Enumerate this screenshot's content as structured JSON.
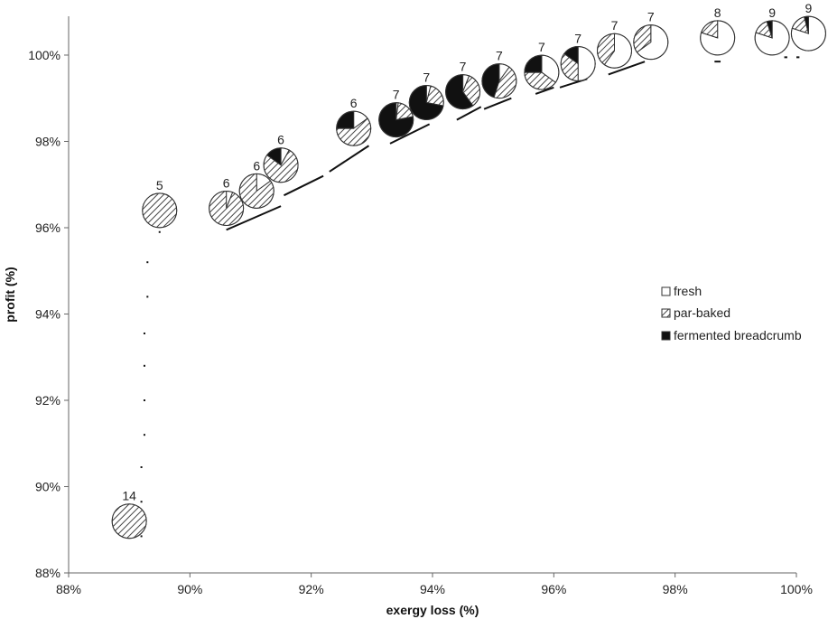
{
  "chart_data": {
    "type": "scatter",
    "xlabel": "exergy loss (%)",
    "ylabel": "profit (%)",
    "xlim": [
      88,
      100
    ],
    "ylim": [
      88,
      100.9
    ],
    "x_ticks": [
      88,
      90,
      92,
      94,
      96,
      98,
      100
    ],
    "y_ticks": [
      88,
      90,
      92,
      94,
      96,
      98,
      100
    ],
    "x_tick_labels": [
      "88%",
      "90%",
      "92%",
      "94%",
      "96%",
      "98%",
      "100%"
    ],
    "y_tick_labels": [
      "88%",
      "90%",
      "92%",
      "94%",
      "96%",
      "98%",
      "100%"
    ],
    "grid": false,
    "legend_position": "right",
    "legend": [
      {
        "key": "fresh",
        "label": "fresh",
        "fill": "#ffffff"
      },
      {
        "key": "par_baked",
        "label": "par-baked",
        "fill": "hatch"
      },
      {
        "key": "fermented",
        "label": "fermented breadcrumb",
        "fill": "#000000"
      }
    ],
    "colors": {
      "fresh": "#ffffff",
      "par_baked_hatch": "#444444",
      "fermented": "#111111",
      "outline": "#333333"
    },
    "points": [
      {
        "x": 89.0,
        "y": 89.2,
        "label": "14",
        "fresh": 0,
        "par_baked": 1.0,
        "fermented": 0
      },
      {
        "x": 89.5,
        "y": 96.4,
        "label": "5",
        "fresh": 0,
        "par_baked": 1.0,
        "fermented": 0
      },
      {
        "x": 90.6,
        "y": 96.45,
        "label": "6",
        "fresh": 0.06,
        "par_baked": 0.94,
        "fermented": 0
      },
      {
        "x": 91.1,
        "y": 96.85,
        "label": "6",
        "fresh": 0.15,
        "par_baked": 0.85,
        "fermented": 0
      },
      {
        "x": 91.5,
        "y": 97.45,
        "label": "6",
        "fresh": 0.08,
        "par_baked": 0.77,
        "fermented": 0.15
      },
      {
        "x": 92.7,
        "y": 98.3,
        "label": "6",
        "fresh": 0.15,
        "par_baked": 0.6,
        "fermented": 0.25
      },
      {
        "x": 93.4,
        "y": 98.5,
        "label": "7",
        "fresh": 0.02,
        "par_baked": 0.2,
        "fermented": 0.78
      },
      {
        "x": 93.9,
        "y": 98.9,
        "label": "7",
        "fresh": 0.04,
        "par_baked": 0.24,
        "fermented": 0.72
      },
      {
        "x": 94.5,
        "y": 99.15,
        "label": "7",
        "fresh": 0.06,
        "par_baked": 0.34,
        "fermented": 0.6
      },
      {
        "x": 95.1,
        "y": 99.4,
        "label": "7",
        "fresh": 0.1,
        "par_baked": 0.45,
        "fermented": 0.45
      },
      {
        "x": 95.8,
        "y": 99.6,
        "label": "7",
        "fresh": 0.35,
        "par_baked": 0.4,
        "fermented": 0.25
      },
      {
        "x": 96.4,
        "y": 99.8,
        "label": "7",
        "fresh": 0.5,
        "par_baked": 0.35,
        "fermented": 0.15
      },
      {
        "x": 97.0,
        "y": 100.1,
        "label": "7",
        "fresh": 0.6,
        "par_baked": 0.4,
        "fermented": 0
      },
      {
        "x": 97.6,
        "y": 100.3,
        "label": "7",
        "fresh": 0.65,
        "par_baked": 0.35,
        "fermented": 0
      },
      {
        "x": 98.7,
        "y": 100.4,
        "label": "8",
        "fresh": 0.8,
        "par_baked": 0.2,
        "fermented": 0
      },
      {
        "x": 99.6,
        "y": 100.4,
        "label": "9",
        "fresh": 0.8,
        "par_baked": 0.15,
        "fermented": 0.05
      },
      {
        "x": 100.2,
        "y": 100.5,
        "label": "9",
        "fresh": 0.8,
        "par_baked": 0.16,
        "fermented": 0.04
      }
    ],
    "trail_segments": [
      {
        "x1": 89.3,
        "y1": 95.2,
        "x2": 89.3,
        "y2": 95.2
      },
      {
        "x1": 89.3,
        "y1": 94.4,
        "x2": 89.3,
        "y2": 94.4
      },
      {
        "x1": 89.25,
        "y1": 93.55,
        "x2": 89.25,
        "y2": 93.55
      },
      {
        "x1": 89.25,
        "y1": 92.8,
        "x2": 89.25,
        "y2": 92.8
      },
      {
        "x1": 89.25,
        "y1": 92.0,
        "x2": 89.25,
        "y2": 92.0
      },
      {
        "x1": 89.25,
        "y1": 91.2,
        "x2": 89.25,
        "y2": 91.2
      },
      {
        "x1": 89.2,
        "y1": 90.45,
        "x2": 89.2,
        "y2": 90.45
      },
      {
        "x1": 89.2,
        "y1": 89.65,
        "x2": 89.2,
        "y2": 89.65
      },
      {
        "x1": 89.2,
        "y1": 88.85,
        "x2": 89.2,
        "y2": 88.85
      },
      {
        "x1": 89.5,
        "y1": 95.9,
        "x2": 89.5,
        "y2": 95.9
      },
      {
        "x1": 90.6,
        "y1": 95.95,
        "x2": 91.5,
        "y2": 96.5
      },
      {
        "x1": 91.55,
        "y1": 96.75,
        "x2": 92.2,
        "y2": 97.2
      },
      {
        "x1": 92.3,
        "y1": 97.3,
        "x2": 92.95,
        "y2": 97.9
      },
      {
        "x1": 93.3,
        "y1": 97.95,
        "x2": 93.95,
        "y2": 98.4
      },
      {
        "x1": 94.4,
        "y1": 98.5,
        "x2": 94.8,
        "y2": 98.8
      },
      {
        "x1": 94.85,
        "y1": 98.75,
        "x2": 95.3,
        "y2": 99.0
      },
      {
        "x1": 95.7,
        "y1": 99.1,
        "x2": 96.0,
        "y2": 99.25
      },
      {
        "x1": 96.1,
        "y1": 99.25,
        "x2": 96.55,
        "y2": 99.45
      },
      {
        "x1": 96.9,
        "y1": 99.55,
        "x2": 97.5,
        "y2": 99.85
      },
      {
        "x1": 98.65,
        "y1": 99.85,
        "x2": 98.75,
        "y2": 99.85
      },
      {
        "x1": 99.8,
        "y1": 99.95,
        "x2": 99.85,
        "y2": 99.95
      },
      {
        "x1": 100.0,
        "y1": 99.95,
        "x2": 100.05,
        "y2": 99.95
      }
    ]
  }
}
